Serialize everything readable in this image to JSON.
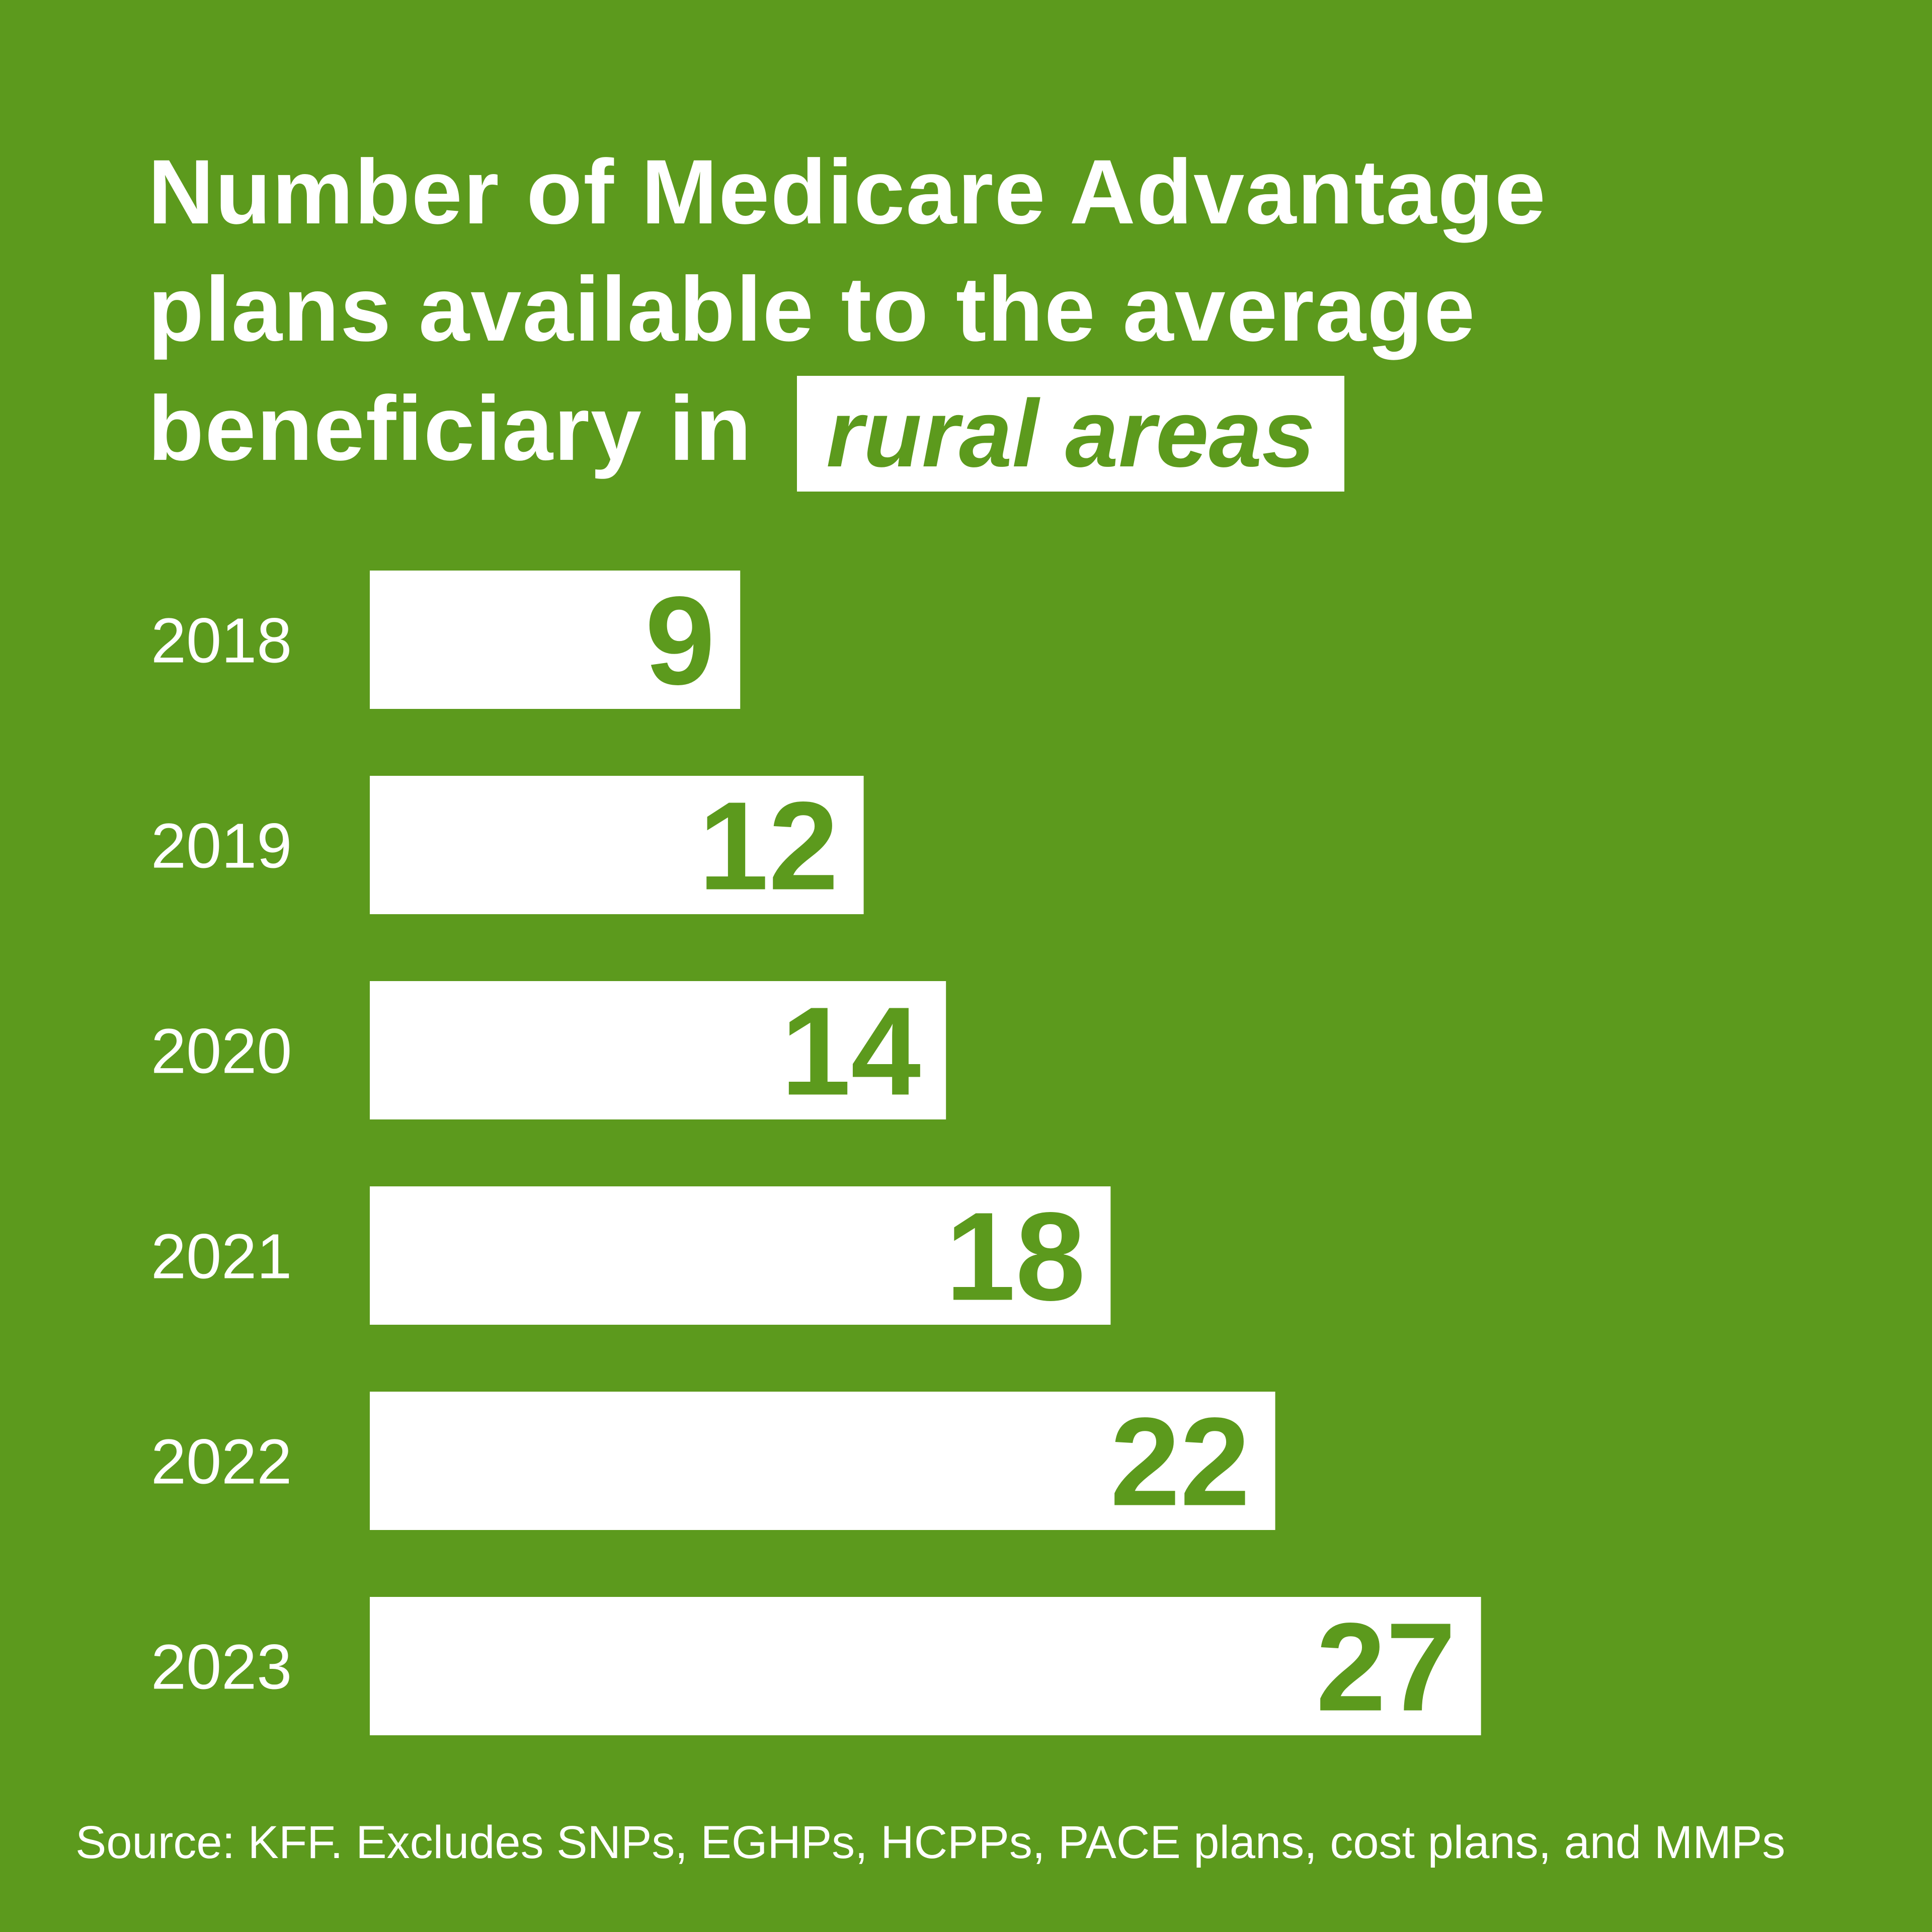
{
  "colors": {
    "background": "#5c9a1d",
    "bar": "#ffffff",
    "value_text": "#5c9a1d"
  },
  "title": {
    "line1": "Number of Medicare Advantage",
    "line2": "plans available to the average",
    "line3": "beneficiary in",
    "highlight": "rural areas"
  },
  "source": "Source: KFF. Excludes SNPs, EGHPs, HCPPs, PACE plans, cost plans, and MMPs",
  "chart_data": {
    "type": "bar",
    "orientation": "horizontal",
    "title": "Number of Medicare Advantage plans available to the average beneficiary in rural areas",
    "categories": [
      "2018",
      "2019",
      "2020",
      "2021",
      "2022",
      "2023"
    ],
    "values": [
      9,
      12,
      14,
      18,
      22,
      27
    ],
    "data_labels": [
      "9",
      "12",
      "14",
      "18",
      "22",
      "27"
    ],
    "xlim": [
      0,
      27
    ],
    "grid": false,
    "legend": "none"
  }
}
